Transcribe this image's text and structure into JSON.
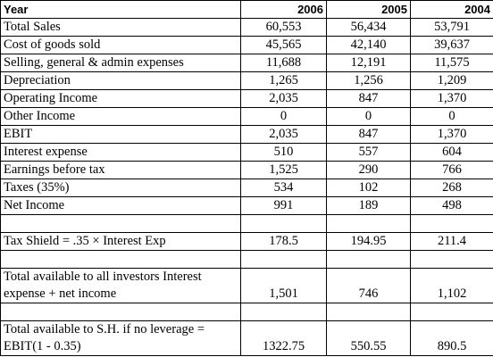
{
  "columns": {
    "label": "Year",
    "years": [
      "2006",
      "2005",
      "2004"
    ]
  },
  "rows": [
    {
      "label": "Total Sales",
      "values": [
        "60,553",
        "56,434",
        "53,791"
      ]
    },
    {
      "label": "Cost of goods sold",
      "values": [
        "45,565",
        "42,140",
        "39,637"
      ]
    },
    {
      "label": "Selling, general & admin expenses",
      "values": [
        "11,688",
        "12,191",
        "11,575"
      ]
    },
    {
      "label": "Depreciation",
      "values": [
        "1,265",
        "1,256",
        "1,209"
      ]
    },
    {
      "label": "Operating Income",
      "values": [
        "2,035",
        "847",
        "1,370"
      ]
    },
    {
      "label": "Other Income",
      "values": [
        "0",
        "0",
        "0"
      ]
    },
    {
      "label": "EBIT",
      "values": [
        "2,035",
        "847",
        "1,370"
      ]
    },
    {
      "label": "Interest expense",
      "values": [
        "510",
        "557",
        "604"
      ]
    },
    {
      "label": "Earnings before tax",
      "values": [
        "1,525",
        "290",
        "766"
      ]
    },
    {
      "label": "Taxes (35%)",
      "values": [
        "534",
        "102",
        "268"
      ]
    },
    {
      "label": "Net Income",
      "values": [
        "991",
        "189",
        "498"
      ]
    }
  ],
  "tax_shield": {
    "label": "Tax Shield = .35 × Interest Exp",
    "values": [
      "178.5",
      "194.95",
      "211.4"
    ]
  },
  "total_investors": {
    "label": "Total available to all investors Interest expense + net income",
    "values": [
      "1,501",
      "746",
      "1,102"
    ]
  },
  "total_sh": {
    "label": "Total available to S.H. if no leverage = EBIT(1 - 0.35)",
    "values": [
      "1322.75",
      "550.55",
      "890.5"
    ]
  }
}
